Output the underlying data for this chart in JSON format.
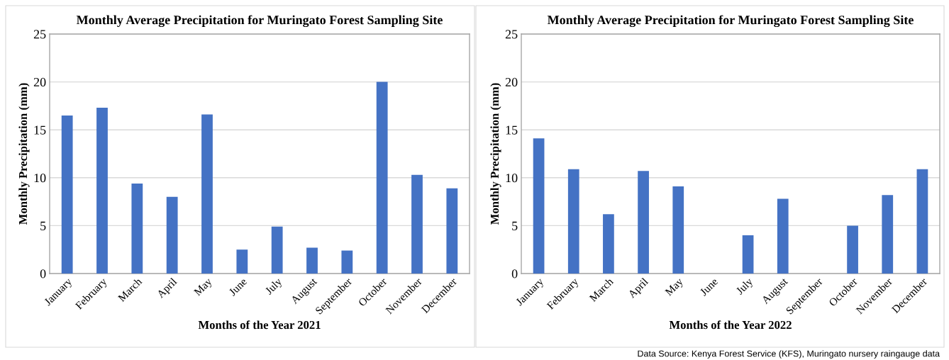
{
  "chart_data": [
    {
      "type": "bar",
      "title": "Monthly Average Precipitation for Muringato Forest Sampling Site",
      "xlabel": "Months of the Year 2021",
      "ylabel": "Monthly Precipitation (mm)",
      "categories": [
        "January",
        "February",
        "March",
        "April",
        "May",
        "June",
        "July",
        "August",
        "September",
        "October",
        "November",
        "December"
      ],
      "values": [
        16.5,
        17.3,
        9.4,
        8.0,
        16.6,
        2.5,
        4.9,
        2.7,
        2.4,
        20.0,
        10.3,
        8.9
      ],
      "color": "#4472c4",
      "ylim": [
        0,
        25
      ],
      "yticks": [
        0,
        5,
        10,
        15,
        20,
        25
      ],
      "grid": "y"
    },
    {
      "type": "bar",
      "title": "Monthly Average Precipitation for Muringato Forest Sampling Site",
      "xlabel": "Months of the Year 2022",
      "ylabel": "Monthly Precipitation (mm)",
      "categories": [
        "January",
        "February",
        "March",
        "April",
        "May",
        "June",
        "July",
        "August",
        "September",
        "October",
        "November",
        "December"
      ],
      "values": [
        14.1,
        10.9,
        6.2,
        10.7,
        9.1,
        null,
        4.0,
        7.8,
        null,
        5.0,
        8.2,
        10.9
      ],
      "color": "#4472c4",
      "ylim": [
        0,
        25
      ],
      "yticks": [
        0,
        5,
        10,
        15,
        20,
        25
      ],
      "grid": "y",
      "annotations": [
        "Data Source: Kenya Forest Service (KFS), Muringato nursery raingauge data"
      ]
    }
  ]
}
